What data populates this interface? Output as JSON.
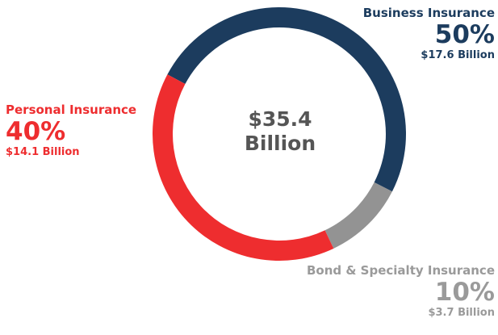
{
  "chart_data": {
    "type": "pie",
    "total_label_line1": "$35.4",
    "total_label_line2": "Billion",
    "slices": [
      {
        "name": "Business Insurance",
        "percent_label": "50%",
        "amount_label": "$17.6 Billion",
        "value": 17.6,
        "color": "#1c3c5e"
      },
      {
        "name": "Bond & Specialty Insurance",
        "percent_label": "10%",
        "amount_label": "$3.7 Billion",
        "value": 3.7,
        "color": "#939393"
      },
      {
        "name": "Personal Insurance",
        "percent_label": "40%",
        "amount_label": "$14.1 Billion",
        "value": 14.1,
        "color": "#ee2d2f"
      }
    ],
    "legend_colors": {
      "business": "#1c3c5e",
      "bond": "#9a9a9a",
      "personal": "#ee2d2f"
    }
  }
}
